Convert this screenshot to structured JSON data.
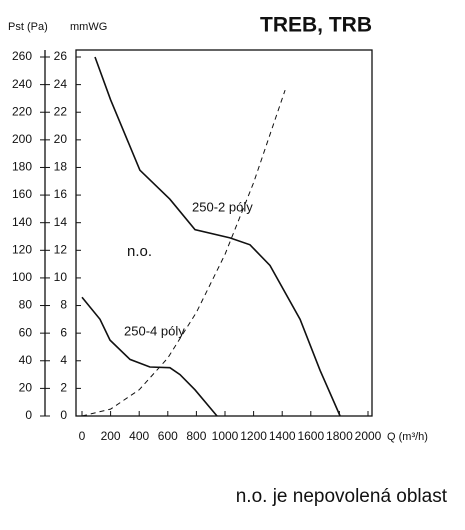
{
  "chart_data": {
    "type": "line",
    "title": "TREB, TRB",
    "y_label": "Pst (Pa)",
    "y2_label": "mmWG",
    "x_label": "Q (m³/h)",
    "xlim": [
      0,
      2000
    ],
    "xticks": [
      0,
      200,
      400,
      600,
      800,
      1000,
      1200,
      1400,
      1600,
      1800,
      2000
    ],
    "ylim": [
      0,
      260
    ],
    "yticks": [
      0,
      20,
      40,
      60,
      80,
      100,
      120,
      140,
      160,
      180,
      200,
      220,
      240,
      260
    ],
    "y2lim": [
      0,
      26
    ],
    "y2ticks": [
      0,
      2,
      4,
      6,
      8,
      10,
      12,
      14,
      16,
      18,
      20,
      22,
      24,
      26
    ],
    "grid": false,
    "series": [
      {
        "name": "250-2 póly",
        "color": "#111111",
        "dashed": false,
        "x": [
          91,
          200,
          405,
          615,
          790,
          1035,
          1175,
          1315,
          1525,
          1665,
          1805
        ],
        "values": [
          260,
          229,
          178,
          157,
          135,
          129,
          124,
          109,
          70,
          33,
          0
        ]
      },
      {
        "name": "250-4 póly",
        "color": "#111111",
        "dashed": false,
        "x": [
          0,
          126,
          196,
          336,
          475,
          615,
          685,
          790,
          944
        ],
        "values": [
          86,
          70,
          55,
          41,
          35.5,
          35,
          30,
          19,
          0
        ]
      },
      {
        "color": "#111111",
        "dashed": true,
        "x": [
          0,
          200,
          400,
          600,
          800,
          1000,
          1200,
          1420
        ],
        "values": [
          0,
          5,
          19,
          42,
          75,
          117,
          169,
          236
        ]
      }
    ],
    "annotations": [
      "n.o."
    ],
    "note": "n.o. je nepovolená oblast"
  }
}
